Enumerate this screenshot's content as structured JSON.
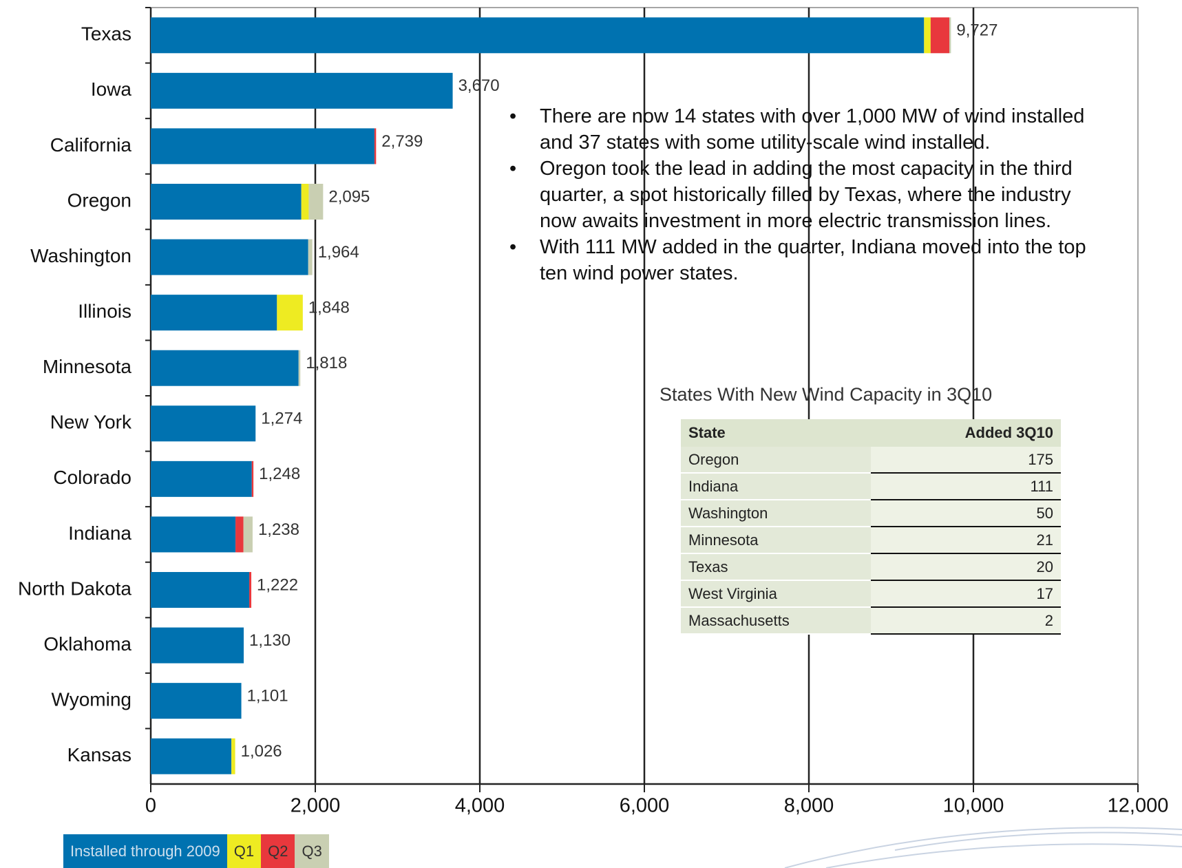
{
  "chart_data": {
    "type": "bar",
    "orientation": "horizontal",
    "stacked": true,
    "categories": [
      "Texas",
      "Iowa",
      "California",
      "Oregon",
      "Washington",
      "Illinois",
      "Minnesota",
      "New York",
      "Colorado",
      "Indiana",
      "North Dakota",
      "Oklahoma",
      "Wyoming",
      "Kansas"
    ],
    "series": [
      {
        "name": "Installed through 2009",
        "color": "#0072b0",
        "values": [
          9400,
          3670,
          2719,
          1830,
          1914,
          1534,
          1797,
          1274,
          1228,
          1030,
          1197,
          1130,
          1101,
          980
        ]
      },
      {
        "name": "Q1",
        "color": "#eeeb22",
        "values": [
          80,
          0,
          0,
          90,
          0,
          314,
          0,
          0,
          0,
          0,
          0,
          0,
          0,
          46
        ]
      },
      {
        "name": "Q2",
        "color": "#e8383d",
        "values": [
          227,
          0,
          20,
          0,
          0,
          0,
          0,
          0,
          20,
          97,
          25,
          0,
          0,
          0
        ]
      },
      {
        "name": "Q3",
        "color": "#c9cfb2",
        "values": [
          20,
          0,
          0,
          175,
          50,
          0,
          21,
          0,
          0,
          111,
          0,
          0,
          0,
          0
        ]
      }
    ],
    "totals": [
      9727,
      3670,
      2739,
      2095,
      1964,
      1848,
      1818,
      1274,
      1248,
      1238,
      1222,
      1130,
      1101,
      1026
    ],
    "total_labels": [
      "9,727",
      "3,670",
      "2,739",
      "2,095",
      "1,964",
      "1,848",
      "1,818",
      "1,274",
      "1,248",
      "1,238",
      "1,222",
      "1,130",
      "1,101",
      "1,026"
    ],
    "xlim": [
      0,
      12000
    ],
    "xticks": [
      0,
      {
        "value": 2000,
        "label": "2,000"
      },
      {
        "value": 4000,
        "label": "4,000"
      },
      {
        "value": 6000,
        "label": "6,000"
      },
      {
        "value": 8000,
        "label": "8,000"
      },
      {
        "value": 10000,
        "label": "10,000"
      },
      {
        "value": 12000,
        "label": "12,000"
      }
    ],
    "grid": true,
    "legend": "bottom-left"
  },
  "notes": [
    "There are now 14 states with over 1,000 MW of wind installed and 37 states with some utility-scale wind installed.",
    "Oregon took the lead in adding the most capacity in the third quarter, a spot historically filled by Texas, where the industry now awaits investment in more electric transmission lines.",
    "With 111 MW added in the quarter, Indiana moved into the top ten wind power states."
  ],
  "table": {
    "title": "States With New Wind Capacity in 3Q10",
    "header": [
      "State",
      "Added 3Q10"
    ],
    "rows": [
      [
        "Oregon",
        "175"
      ],
      [
        "Indiana",
        "111"
      ],
      [
        "Washington",
        "50"
      ],
      [
        "Minnesota",
        "21"
      ],
      [
        "Texas",
        "20"
      ],
      [
        "West Virginia",
        "17"
      ],
      [
        "Massachusetts",
        "2"
      ]
    ]
  }
}
